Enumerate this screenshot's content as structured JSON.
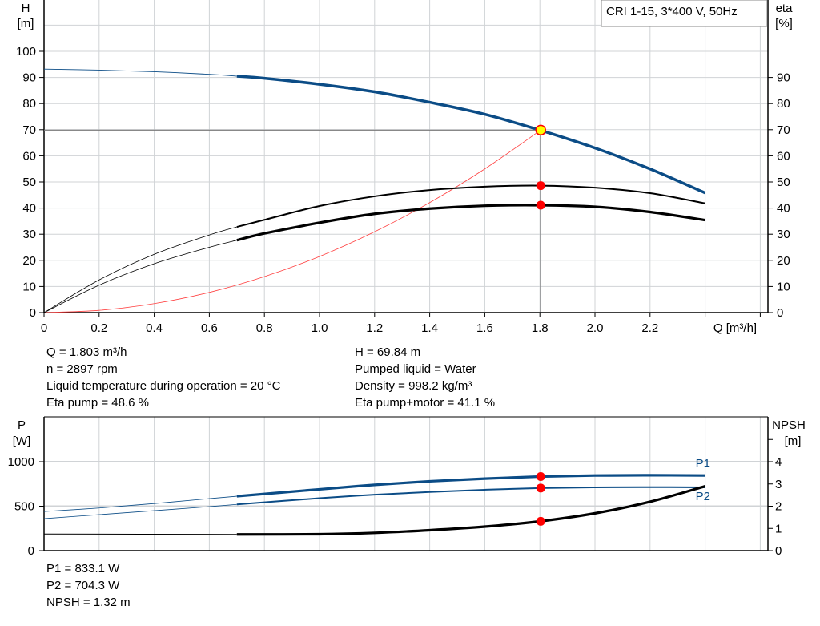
{
  "title_box": "CRI 1-15, 3*400 V, 50Hz",
  "colors": {
    "head": "#0b4c86",
    "eta": "#000000",
    "system": "#ff4040",
    "grid": "#d0d3d6",
    "marker": "#ff0000",
    "op_marker_fill": "#ffff00"
  },
  "chart_data": [
    {
      "type": "line",
      "xlabel": "Q [m³/h]",
      "ylabel": "H\n[m]",
      "ylabel_lines": [
        "H",
        "[m]"
      ],
      "y2label_lines": [
        "eta",
        "[%]"
      ],
      "xlim": [
        0,
        2.6
      ],
      "ylim": [
        0,
        110
      ],
      "y2lim": [
        0,
        110
      ],
      "grid": true,
      "x_ticks": [
        "0",
        "0.2",
        "0.4",
        "0.6",
        "0.8",
        "1.0",
        "1.2",
        "1.4",
        "1.6",
        "1.8",
        "2.0",
        "2.2"
      ],
      "y_ticks": [
        "0",
        "10",
        "20",
        "30",
        "40",
        "50",
        "60",
        "70",
        "80",
        "90",
        "100"
      ],
      "y2_ticks": [
        "0",
        "10",
        "20",
        "30",
        "40",
        "50",
        "60",
        "70",
        "80",
        "90"
      ],
      "series": [
        {
          "key": "H",
          "axis": "left",
          "color": "#0b4c86",
          "x": [
            0,
            0.2,
            0.4,
            0.6,
            0.7,
            0.8,
            1.0,
            1.2,
            1.4,
            1.6,
            1.8,
            2.0,
            2.2,
            2.4
          ],
          "y": [
            93.2,
            92.8,
            92.2,
            91.2,
            90.5,
            89.7,
            87.4,
            84.5,
            80.5,
            75.9,
            69.84,
            63,
            55,
            45.8
          ]
        },
        {
          "key": "eta_pump",
          "axis": "right",
          "color": "#000000",
          "x": [
            0,
            0.2,
            0.4,
            0.6,
            0.7,
            0.8,
            1.0,
            1.2,
            1.4,
            1.6,
            1.8,
            2.0,
            2.2,
            2.4
          ],
          "y": [
            0,
            12.5,
            22.3,
            29.7,
            32.8,
            35.5,
            40.8,
            44.5,
            46.9,
            48.2,
            48.6,
            47.8,
            45.7,
            41.8
          ]
        },
        {
          "key": "eta_pump_motor",
          "axis": "right",
          "color": "#000000",
          "x": [
            0,
            0.2,
            0.4,
            0.6,
            0.7,
            0.8,
            1.0,
            1.2,
            1.4,
            1.6,
            1.8,
            2.0,
            2.2,
            2.4
          ],
          "y": [
            0,
            10.5,
            18.7,
            25,
            27.7,
            30.3,
            34.4,
            37.8,
            39.8,
            40.9,
            41.1,
            40.5,
            38.5,
            35.4
          ]
        },
        {
          "key": "system",
          "axis": "left",
          "color": "#ff4040",
          "x": [
            0,
            0.2,
            0.4,
            0.6,
            0.8,
            1.0,
            1.2,
            1.4,
            1.6,
            1.803
          ],
          "y": [
            0,
            0.86,
            3.44,
            7.73,
            13.75,
            21.48,
            30.93,
            42.1,
            54.99,
            69.84
          ]
        }
      ],
      "operating_point": {
        "Q": 1.803,
        "H": 69.84,
        "eta_pump": 48.6,
        "eta_pump_motor": 41.1
      },
      "allowed_range": [
        0.7,
        2.4
      ]
    },
    {
      "type": "line",
      "ylabel_lines": [
        "P",
        "[W]"
      ],
      "y2label_lines": [
        "NPSH",
        "[m]"
      ],
      "xlim": [
        0,
        2.6
      ],
      "ylim": [
        0,
        1500
      ],
      "y2lim": [
        0,
        6
      ],
      "grid": true,
      "y_ticks": [
        "0",
        "500",
        "1000"
      ],
      "y2_ticks": [
        "0",
        "1",
        "2",
        "3",
        "4"
      ],
      "series": [
        {
          "key": "P1",
          "name": "P1",
          "axis": "left",
          "color": "#0b4c86",
          "x": [
            0,
            0.2,
            0.4,
            0.6,
            0.7,
            1.0,
            1.2,
            1.4,
            1.6,
            1.8,
            2.0,
            2.2,
            2.4
          ],
          "y": [
            440,
            480,
            530,
            585,
            612,
            690,
            740,
            780,
            810,
            833.1,
            845,
            848,
            845
          ]
        },
        {
          "key": "P2",
          "name": "P2",
          "axis": "left",
          "color": "#0b4c86",
          "x": [
            0,
            0.2,
            0.4,
            0.6,
            0.7,
            1.0,
            1.2,
            1.4,
            1.6,
            1.8,
            2.0,
            2.2,
            2.4
          ],
          "y": [
            360,
            405,
            450,
            495,
            520,
            590,
            630,
            660,
            685,
            704.3,
            712,
            714,
            712
          ]
        },
        {
          "key": "NPSH",
          "axis": "right",
          "color": "#000000",
          "x": [
            0,
            0.7,
            1.0,
            1.2,
            1.4,
            1.6,
            1.8,
            2.0,
            2.2,
            2.4
          ],
          "y": [
            0.75,
            0.73,
            0.74,
            0.8,
            0.92,
            1.08,
            1.32,
            1.68,
            2.2,
            2.9
          ]
        }
      ],
      "operating_point": {
        "Q": 1.803,
        "P1": 833.1,
        "P2": 704.3,
        "NPSH": 1.32
      }
    }
  ],
  "info_top_left": [
    "Q = 1.803 m³/h",
    "n = 2897 rpm",
    "Liquid temperature during operation = 20 °C",
    "Eta pump = 48.6 %"
  ],
  "info_top_right": [
    "H = 69.84 m",
    "Pumped liquid = Water",
    "Density = 998.2 kg/m³",
    "Eta pump+motor = 41.1 %"
  ],
  "info_bottom": [
    "P1 = 833.1 W",
    "P2 = 704.3 W",
    "NPSH = 1.32 m"
  ]
}
